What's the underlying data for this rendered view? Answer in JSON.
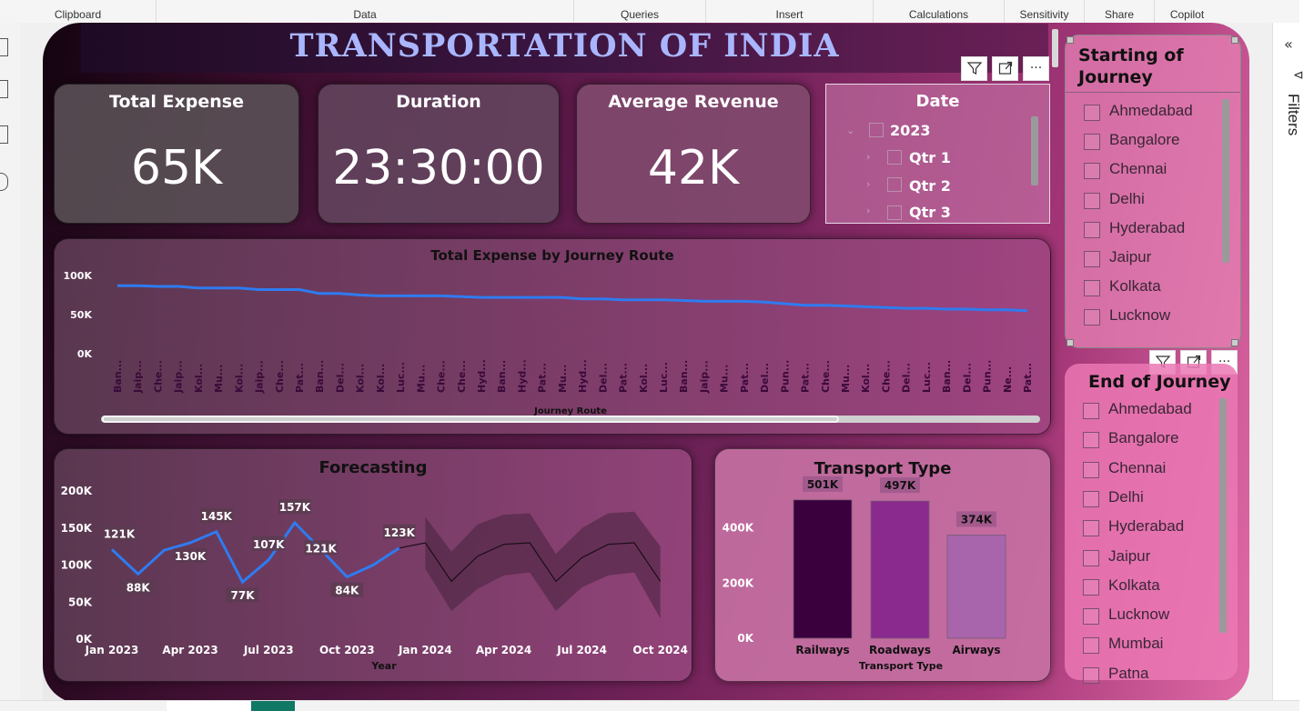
{
  "ribbon": {
    "groups": [
      {
        "label": "Clipboard"
      },
      {
        "label": "Data"
      },
      {
        "label": "Queries"
      },
      {
        "label": "Insert"
      },
      {
        "label": "Calculations"
      },
      {
        "label": "Sensitivity"
      },
      {
        "label": "Share"
      },
      {
        "label": "Copilot"
      }
    ]
  },
  "filters_pane": {
    "label": "Filters",
    "collapse_icon": "double-chevron-left-icon"
  },
  "report": {
    "title": "TRANSPORTATION OF INDIA"
  },
  "kpis": [
    {
      "label": "Total Expense",
      "value": "65K"
    },
    {
      "label": "Duration",
      "value": "23:30:00"
    },
    {
      "label": "Average Revenue",
      "value": "42K"
    }
  ],
  "date_slicer": {
    "title": "Date",
    "items": [
      {
        "label": "2023"
      },
      {
        "label": "Qtr 1"
      },
      {
        "label": "Qtr 2"
      },
      {
        "label": "Qtr 3"
      }
    ]
  },
  "visual_header": {
    "filter_icon": "filter-icon",
    "focus_icon": "focus-mode-icon",
    "more_icon": "more-options-icon",
    "more_label": "···"
  },
  "start_slicer": {
    "title_line1": "Starting of",
    "title_line2": "Journey",
    "items": [
      "Ahmedabad",
      "Bangalore",
      "Chennai",
      "Delhi",
      "Hyderabad",
      "Jaipur",
      "Kolkata",
      "Lucknow"
    ]
  },
  "end_slicer": {
    "title": "End of Journey",
    "items": [
      "Ahmedabad",
      "Bangalore",
      "Chennai",
      "Delhi",
      "Hyderabad",
      "Jaipur",
      "Kolkata",
      "Lucknow",
      "Mumbai",
      "Patna"
    ]
  },
  "chart_data": [
    {
      "type": "line",
      "title": "Total Expense by Journey Route",
      "xlabel": "Journey Route",
      "ylabel": "",
      "yticks": [
        "0K",
        "50K",
        "100K"
      ],
      "ylim": [
        0,
        100000
      ],
      "categories": [
        "Ban...",
        "Jaip...",
        "Che...",
        "Jaip...",
        "Kol...",
        "Mu...",
        "Kol...",
        "Jaip...",
        "Che...",
        "Pat...",
        "Ban...",
        "Del...",
        "Kol...",
        "Kol...",
        "Luc...",
        "Mu...",
        "Che...",
        "Che...",
        "Hyd...",
        "Ban...",
        "Hyd...",
        "Pat...",
        "Mu...",
        "Hyd...",
        "Del...",
        "Pat...",
        "Kol...",
        "Luc...",
        "Ban...",
        "Jaip...",
        "Mu...",
        "Pat...",
        "Del...",
        "Pun...",
        "Pat...",
        "Che...",
        "Mu...",
        "Kol...",
        "Che...",
        "Del...",
        "Luc...",
        "Ban...",
        "Del...",
        "Pun...",
        "Ne...",
        "Pat..."
      ],
      "values": [
        87000,
        87000,
        86000,
        86000,
        84000,
        84000,
        84000,
        82000,
        82000,
        82000,
        77000,
        77000,
        75000,
        74000,
        74000,
        74000,
        74000,
        73000,
        72000,
        72000,
        72000,
        72000,
        72000,
        70000,
        70000,
        69000,
        69000,
        69000,
        68000,
        67000,
        67000,
        67000,
        66000,
        64000,
        62000,
        62000,
        61000,
        60000,
        59000,
        58000,
        58000,
        57000,
        57000,
        56000,
        56000,
        55000
      ],
      "color": "#2f7bf0",
      "grid": false
    },
    {
      "type": "line",
      "title": "Forecasting",
      "xlabel": "Year",
      "ylabel": "",
      "yticks": [
        "0K",
        "50K",
        "100K",
        "150K",
        "200K"
      ],
      "ylim": [
        0,
        200000
      ],
      "xticks": [
        "Jan 2023",
        "Apr 2023",
        "Jul 2023",
        "Oct 2023",
        "Jan 2024",
        "Apr 2024",
        "Jul 2024",
        "Oct 2024"
      ],
      "series": [
        {
          "kind": "actual",
          "x": [
            "2023-01",
            "2023-02",
            "2023-03",
            "2023-04",
            "2023-05",
            "2023-06",
            "2023-07",
            "2023-08",
            "2023-09",
            "2023-10",
            "2023-11",
            "2023-12"
          ],
          "values": [
            121000,
            88000,
            120000,
            130000,
            145000,
            77000,
            107000,
            157000,
            121000,
            84000,
            100000,
            123000
          ],
          "labels": [
            "121K",
            "88K",
            "",
            "130K",
            "145K",
            "77K",
            "107K",
            "157K",
            "121K",
            "84K",
            "",
            "123K"
          ]
        },
        {
          "kind": "forecast",
          "x": [
            "2024-01",
            "2024-02",
            "2024-03",
            "2024-04",
            "2024-05",
            "2024-06",
            "2024-07",
            "2024-08",
            "2024-09",
            "2024-10"
          ],
          "values": [
            130000,
            78000,
            112000,
            128000,
            130000,
            78000,
            110000,
            128000,
            130000,
            78000
          ],
          "upper": [
            165000,
            118000,
            155000,
            168000,
            170000,
            115000,
            150000,
            170000,
            172000,
            125000
          ],
          "lower": [
            95000,
            38000,
            68000,
            86000,
            90000,
            38000,
            70000,
            86000,
            90000,
            28000
          ]
        }
      ],
      "color": "#2f7bf0"
    },
    {
      "type": "bar",
      "title": "Transport Type",
      "xlabel": "Transport Type",
      "ylabel": "",
      "yticks": [
        "0K",
        "200K",
        "400K"
      ],
      "ylim": [
        0,
        540000
      ],
      "categories": [
        "Railways",
        "Roadways",
        "Airways"
      ],
      "values": [
        501000,
        497000,
        374000
      ],
      "labels": [
        "501K",
        "497K",
        "374K"
      ],
      "colors": [
        "#3a003d",
        "#8a2a8e",
        "#a865ac"
      ]
    }
  ]
}
